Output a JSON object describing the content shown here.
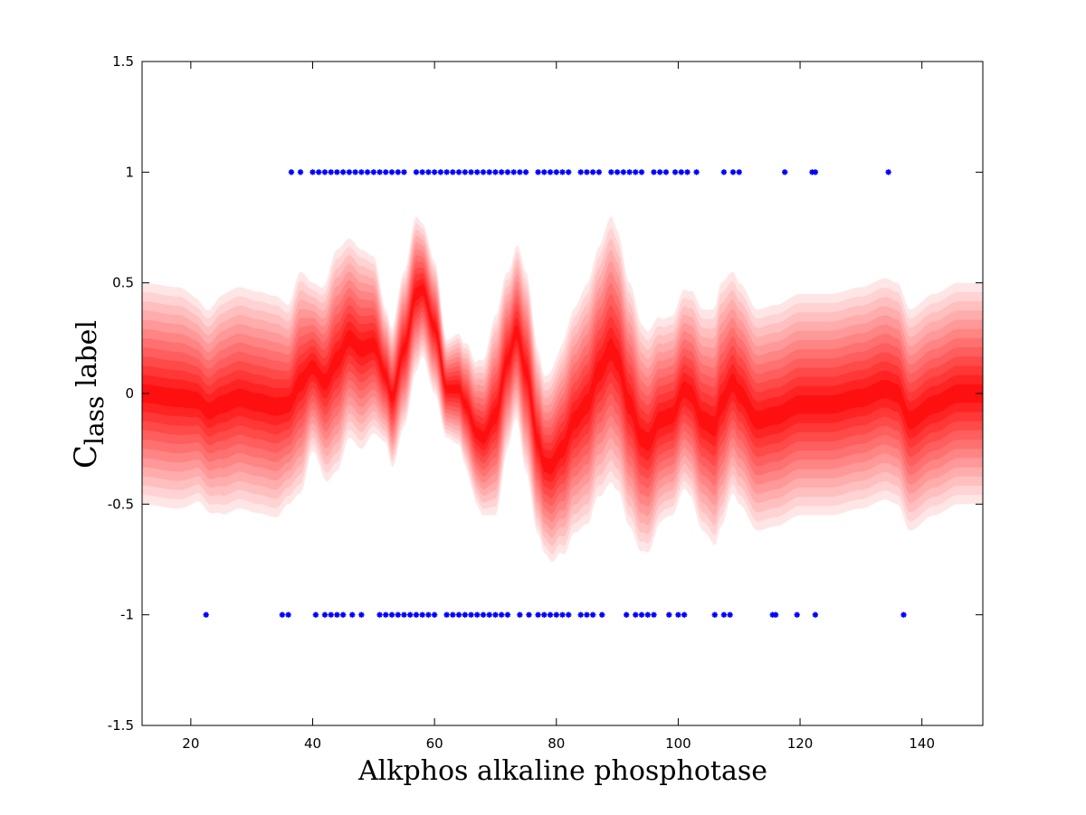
{
  "chart_data": {
    "type": "scatter",
    "title": "",
    "xlabel": "Alkphos alkaline phosphotase",
    "ylabel": {
      "c": "C",
      "lass": "lass",
      "space": " ",
      "label": "label"
    },
    "xlim": [
      12,
      150
    ],
    "ylim": [
      -1.5,
      1.5
    ],
    "xticks": [
      20,
      40,
      60,
      80,
      100,
      120,
      140
    ],
    "yticks": [
      1.5,
      1,
      0.5,
      0,
      -0.5,
      -1,
      -1.5
    ],
    "xtick_labels": [
      "20",
      "40",
      "60",
      "80",
      "100",
      "120",
      "140"
    ],
    "ytick_labels": [
      "1.5",
      "1",
      "0.5",
      "0",
      "-0.5",
      "-1",
      "-1.5"
    ],
    "grid": false,
    "legend": "none",
    "colors": {
      "points": "#0000ff",
      "band_core": "#ff0000",
      "band_outer": "#ffe0e0"
    },
    "points_class_1_x": [
      36.5,
      38,
      40,
      41,
      42,
      43,
      44,
      45,
      46,
      47,
      48,
      49,
      50,
      51,
      52,
      53,
      54,
      55,
      57,
      58,
      59,
      60,
      61,
      62,
      63,
      64,
      65,
      66,
      67,
      68,
      69,
      70,
      71,
      72,
      73,
      74,
      75,
      77,
      78,
      79,
      80,
      81,
      82,
      84,
      85,
      86,
      87,
      89,
      90,
      91,
      92,
      93,
      94,
      96,
      97,
      98,
      99.5,
      100.5,
      101.5,
      103,
      107.5,
      109,
      110,
      117.5,
      122,
      122.5,
      134.5
    ],
    "points_class_neg1_x": [
      22.5,
      35,
      36,
      40.5,
      42,
      43,
      44,
      45,
      46.5,
      48,
      51,
      52,
      53,
      54,
      55,
      56,
      57,
      58,
      59,
      60,
      62,
      63,
      64,
      65,
      66,
      67,
      68,
      69,
      70,
      71,
      72,
      74,
      75.5,
      77,
      78,
      79,
      80,
      81,
      82,
      84,
      85,
      86,
      87.5,
      91.5,
      93,
      94,
      95,
      96,
      98.5,
      100,
      101,
      106,
      107.5,
      108.5,
      115.5,
      116,
      119.5,
      122.5,
      137
    ],
    "predictive_mean": {
      "x": [
        12,
        18,
        21,
        23,
        25,
        28,
        31,
        34,
        36,
        38,
        40,
        42,
        44,
        46,
        48,
        50,
        52,
        53,
        55,
        57,
        58,
        60,
        62,
        64,
        65,
        67,
        68,
        70,
        72,
        73.5,
        75,
        77,
        78,
        79,
        81,
        83,
        85,
        87,
        89,
        90,
        92,
        94,
        95,
        97,
        99,
        101,
        102,
        104,
        106,
        107,
        109,
        110,
        113,
        116,
        120,
        125,
        130,
        134,
        136,
        138,
        142,
        146,
        150
      ],
      "y": [
        0,
        -0.02,
        -0.03,
        -0.08,
        -0.05,
        -0.02,
        -0.04,
        -0.06,
        -0.05,
        0.05,
        0.12,
        0.05,
        0.15,
        0.25,
        0.2,
        0.22,
        0.08,
        -0.02,
        0.2,
        0.45,
        0.47,
        0.3,
        0.02,
        0.02,
        -0.05,
        -0.18,
        -0.2,
        -0.1,
        0.15,
        0.28,
        0.1,
        -0.22,
        -0.32,
        -0.33,
        -0.25,
        -0.12,
        -0.05,
        0.1,
        0.2,
        0.15,
        -0.05,
        -0.2,
        -0.22,
        -0.12,
        -0.1,
        0.02,
        0.0,
        -0.12,
        -0.15,
        -0.05,
        0.05,
        0.0,
        -0.12,
        -0.1,
        -0.05,
        -0.05,
        -0.02,
        0.02,
        0.0,
        -0.12,
        -0.05,
        0.0,
        0.0
      ]
    },
    "band_halfwidth_outer": {
      "x": [
        12,
        18,
        22,
        26,
        30,
        34,
        36,
        38,
        40,
        44,
        46,
        48,
        50,
        52,
        55,
        57,
        58,
        60,
        62,
        64,
        66,
        68,
        70,
        73,
        75,
        78,
        80,
        82,
        86,
        89,
        92,
        95,
        98,
        101,
        104,
        107,
        109,
        112,
        116,
        122,
        130,
        136,
        140,
        150
      ],
      "y": [
        0.5,
        0.5,
        0.45,
        0.5,
        0.5,
        0.5,
        0.45,
        0.5,
        0.38,
        0.5,
        0.45,
        0.45,
        0.4,
        0.3,
        0.35,
        0.35,
        0.3,
        0.3,
        0.22,
        0.25,
        0.3,
        0.35,
        0.45,
        0.38,
        0.45,
        0.4,
        0.45,
        0.5,
        0.55,
        0.6,
        0.55,
        0.5,
        0.45,
        0.45,
        0.5,
        0.55,
        0.5,
        0.5,
        0.5,
        0.5,
        0.5,
        0.5,
        0.5,
        0.5
      ]
    }
  }
}
